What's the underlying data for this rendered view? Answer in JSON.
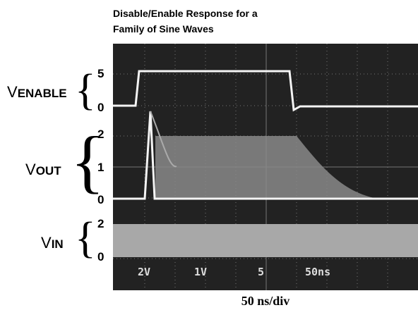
{
  "title": [
    "Disable/Enable Response for a",
    "Family of Sine Waves"
  ],
  "signals": [
    {
      "label": "V",
      "subscript": "ENABLE",
      "scale": [
        5,
        0
      ]
    },
    {
      "label": "V",
      "subscript": "OUT",
      "scale": [
        2,
        1,
        0
      ]
    },
    {
      "label": "V",
      "subscript": "IN",
      "scale": [
        2,
        0
      ]
    }
  ],
  "readouts": [
    "2V",
    "1V",
    "5",
    "50ns"
  ],
  "caption": "50 ns/div"
}
